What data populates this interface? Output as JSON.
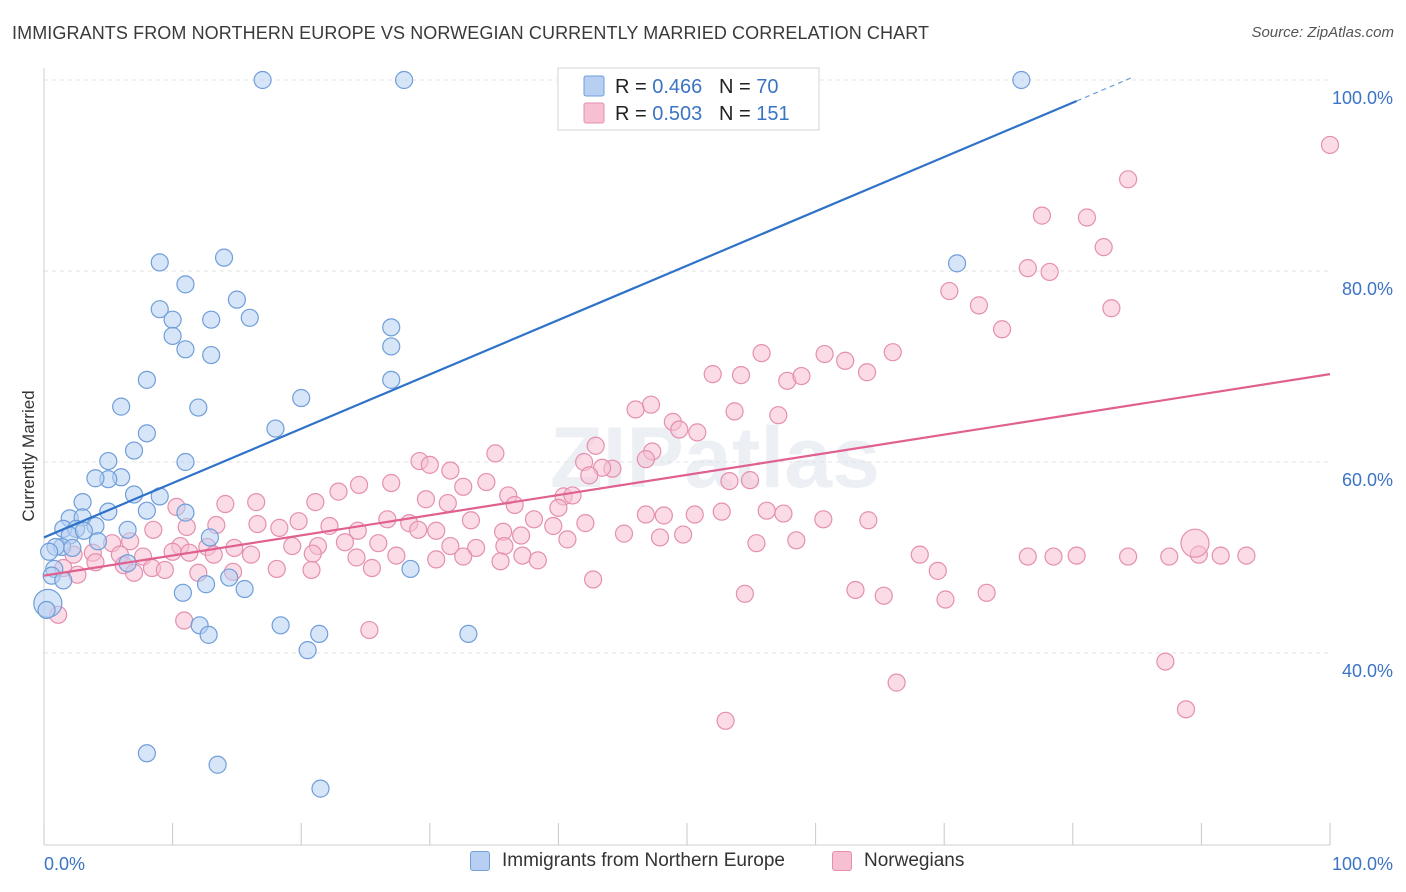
{
  "title": "IMMIGRANTS FROM NORTHERN EUROPE VS NORWEGIAN CURRENTLY MARRIED CORRELATION CHART",
  "source": "Source: ZipAtlas.com",
  "watermark": "ZIPatlas",
  "colors": {
    "blue": "#2f72c9",
    "blue_fill": "#b7d0f2",
    "pink": "#e0608f",
    "pink_fill": "#f7bfd2",
    "tick_label": "#3b74c4"
  },
  "chart_data": {
    "type": "scatter",
    "xlabel": "",
    "ylabel": "Currently Married",
    "xlim": [
      0,
      100
    ],
    "ylim": [
      20,
      102
    ],
    "x_tick_labels": [
      "0.0%",
      "100.0%"
    ],
    "y_ticks": [
      40,
      60,
      80,
      100
    ],
    "y_tick_labels": [
      "40.0%",
      "60.0%",
      "80.0%",
      "100.0%"
    ],
    "grid": true,
    "legend_position": "top-center",
    "stats_legend": [
      {
        "r_label": "R = ",
        "r_value": "0.466",
        "n_label": "N = ",
        "n_value": "70"
      },
      {
        "r_label": "R = ",
        "r_value": "0.503",
        "n_label": "N = ",
        "n_value": "151"
      }
    ],
    "series": [
      {
        "name": "Immigrants from Northern Europe",
        "color": "#2f72c9",
        "trend": {
          "x0": 0,
          "y0": 52.1,
          "x1": 80.3,
          "y1": 97.8,
          "dash_x1": 84.5,
          "dash_y1": 100.2
        },
        "points": [
          [
            17,
            100
          ],
          [
            28,
            100
          ],
          [
            76,
            100
          ],
          [
            9,
            80.9
          ],
          [
            14,
            81.4
          ],
          [
            71,
            80.8
          ],
          [
            11,
            78.6
          ],
          [
            15,
            77
          ],
          [
            9,
            76
          ],
          [
            10,
            74.9
          ],
          [
            13,
            74.9
          ],
          [
            16,
            75.1
          ],
          [
            27,
            74.1
          ],
          [
            10,
            73.2
          ],
          [
            11,
            71.8
          ],
          [
            13,
            71.2
          ],
          [
            27,
            72.1
          ],
          [
            8,
            68.6
          ],
          [
            27,
            68.6
          ],
          [
            6,
            65.8
          ],
          [
            12,
            65.7
          ],
          [
            20,
            66.7
          ],
          [
            8,
            63
          ],
          [
            18,
            63.5
          ],
          [
            7,
            61.2
          ],
          [
            5,
            60.1
          ],
          [
            11,
            60
          ],
          [
            6,
            58.4
          ],
          [
            5,
            58.2
          ],
          [
            4,
            58.3
          ],
          [
            7,
            56.6
          ],
          [
            9,
            56.4
          ],
          [
            3,
            55.8
          ],
          [
            5,
            54.8
          ],
          [
            8,
            54.9
          ],
          [
            11,
            54.7
          ],
          [
            2,
            54.1
          ],
          [
            3,
            54.2
          ],
          [
            4,
            53.3
          ],
          [
            1.5,
            53
          ],
          [
            2.5,
            53
          ],
          [
            6.5,
            52.9
          ],
          [
            2,
            52.3
          ],
          [
            4.2,
            51.7
          ],
          [
            1.4,
            51.1
          ],
          [
            0.9,
            51.1
          ],
          [
            12.9,
            52.1
          ],
          [
            6.5,
            49.4
          ],
          [
            0.8,
            48.8
          ],
          [
            0.6,
            48.1
          ],
          [
            28.5,
            48.8
          ],
          [
            14.4,
            47.9
          ],
          [
            10.8,
            46.3
          ],
          [
            12.6,
            47.2
          ],
          [
            15.6,
            46.7
          ],
          [
            1.5,
            47.6
          ],
          [
            0.3,
            45.2
          ],
          [
            0.2,
            44.5
          ],
          [
            12.1,
            42.9
          ],
          [
            18.4,
            42.9
          ],
          [
            12.8,
            41.9
          ],
          [
            21.4,
            42
          ],
          [
            33,
            42
          ],
          [
            20.5,
            40.3
          ],
          [
            8,
            29.5
          ],
          [
            13.5,
            28.3
          ],
          [
            21.5,
            25.8
          ],
          [
            0.4,
            50.6
          ],
          [
            2.2,
            51
          ],
          [
            3.1,
            52.8
          ]
        ]
      },
      {
        "name": "Norwegians",
        "color": "#e0608f",
        "trend": {
          "x0": 0,
          "y0": 48.1,
          "x1": 100,
          "y1": 69.2
        },
        "points": [
          [
            100,
            93.2
          ],
          [
            84.3,
            89.6
          ],
          [
            77.6,
            85.8
          ],
          [
            81.1,
            85.6
          ],
          [
            82.4,
            82.5
          ],
          [
            76.5,
            80.3
          ],
          [
            78.2,
            79.9
          ],
          [
            70.4,
            77.9
          ],
          [
            72.7,
            76.4
          ],
          [
            83,
            76.1
          ],
          [
            74.5,
            73.9
          ],
          [
            55.8,
            71.4
          ],
          [
            60.7,
            71.3
          ],
          [
            66,
            71.5
          ],
          [
            62.3,
            70.6
          ],
          [
            64,
            69.4
          ],
          [
            54.2,
            69.1
          ],
          [
            57.8,
            68.5
          ],
          [
            58.9,
            69
          ],
          [
            52,
            69.2
          ],
          [
            47.2,
            66
          ],
          [
            46,
            65.5
          ],
          [
            53.7,
            65.3
          ],
          [
            57.1,
            64.9
          ],
          [
            48.9,
            64.2
          ],
          [
            49.4,
            63.4
          ],
          [
            50.8,
            63.1
          ],
          [
            42.9,
            61.7
          ],
          [
            47.3,
            61.1
          ],
          [
            46.8,
            60.3
          ],
          [
            44.2,
            59.3
          ],
          [
            43.4,
            59.4
          ],
          [
            42,
            60
          ],
          [
            35.1,
            60.9
          ],
          [
            29.2,
            60.1
          ],
          [
            30,
            59.7
          ],
          [
            31.6,
            59.1
          ],
          [
            42.4,
            58.6
          ],
          [
            53.3,
            58
          ],
          [
            54.9,
            58.1
          ],
          [
            34.4,
            57.9
          ],
          [
            27,
            57.8
          ],
          [
            24.5,
            57.6
          ],
          [
            32.6,
            57.4
          ],
          [
            22.9,
            56.9
          ],
          [
            36.1,
            56.5
          ],
          [
            40.4,
            56.4
          ],
          [
            41.1,
            56.5
          ],
          [
            29.7,
            56.1
          ],
          [
            31.4,
            55.7
          ],
          [
            21.1,
            55.8
          ],
          [
            16.5,
            55.8
          ],
          [
            14.1,
            55.6
          ],
          [
            10.3,
            55.3
          ],
          [
            36.6,
            55.5
          ],
          [
            40,
            55.2
          ],
          [
            46.8,
            54.5
          ],
          [
            48.2,
            54.4
          ],
          [
            50.6,
            54.5
          ],
          [
            52.7,
            54.8
          ],
          [
            56.2,
            54.9
          ],
          [
            57.5,
            54.6
          ],
          [
            60.6,
            54
          ],
          [
            64.1,
            53.9
          ],
          [
            42.1,
            53.6
          ],
          [
            19.8,
            53.8
          ],
          [
            26.7,
            54
          ],
          [
            28.4,
            53.6
          ],
          [
            33.2,
            53.9
          ],
          [
            38.1,
            54
          ],
          [
            39.6,
            53.3
          ],
          [
            16.6,
            53.5
          ],
          [
            13.4,
            53.4
          ],
          [
            11.1,
            53.2
          ],
          [
            8.5,
            52.9
          ],
          [
            18.3,
            53.1
          ],
          [
            22.2,
            53.3
          ],
          [
            24.4,
            52.8
          ],
          [
            29.1,
            52.9
          ],
          [
            30.5,
            52.8
          ],
          [
            35.7,
            52.7
          ],
          [
            37.1,
            52.3
          ],
          [
            40.7,
            51.9
          ],
          [
            45.1,
            52.5
          ],
          [
            47.9,
            52.1
          ],
          [
            49.7,
            52.4
          ],
          [
            55.4,
            51.5
          ],
          [
            58.5,
            51.8
          ],
          [
            5.3,
            51.5
          ],
          [
            6.7,
            51.7
          ],
          [
            10.6,
            51.2
          ],
          [
            12.7,
            51.1
          ],
          [
            14.8,
            51
          ],
          [
            19.3,
            51.2
          ],
          [
            21.3,
            51.2
          ],
          [
            23.4,
            51.6
          ],
          [
            26,
            51.5
          ],
          [
            31.6,
            51.2
          ],
          [
            33.6,
            51
          ],
          [
            35.8,
            51.2
          ],
          [
            2.3,
            50.3
          ],
          [
            3.8,
            50.5
          ],
          [
            5.9,
            50.3
          ],
          [
            7.7,
            50.1
          ],
          [
            10,
            50.6
          ],
          [
            11.3,
            50.5
          ],
          [
            13.2,
            50.3
          ],
          [
            16.1,
            50.3
          ],
          [
            20.9,
            50.4
          ],
          [
            24.3,
            50
          ],
          [
            27.4,
            50.2
          ],
          [
            30.5,
            49.8
          ],
          [
            32.6,
            50.1
          ],
          [
            35.5,
            49.6
          ],
          [
            37.2,
            50.2
          ],
          [
            38.4,
            49.7
          ],
          [
            68.1,
            50.3
          ],
          [
            76.5,
            50.1
          ],
          [
            78.5,
            50.1
          ],
          [
            80.3,
            50.2
          ],
          [
            84.3,
            50.1
          ],
          [
            87.5,
            50.1
          ],
          [
            89.8,
            50.3
          ],
          [
            91.5,
            50.2
          ],
          [
            93.5,
            50.2
          ],
          [
            4,
            49.5
          ],
          [
            6.2,
            49.2
          ],
          [
            8.4,
            48.9
          ],
          [
            9.4,
            48.7
          ],
          [
            14.7,
            48.5
          ],
          [
            18.1,
            48.8
          ],
          [
            20.8,
            48.7
          ],
          [
            25.5,
            48.9
          ],
          [
            1.5,
            48.9
          ],
          [
            2.6,
            48.2
          ],
          [
            7,
            48.4
          ],
          [
            12,
            48.4
          ],
          [
            42.7,
            47.7
          ],
          [
            54.5,
            46.2
          ],
          [
            63.1,
            46.6
          ],
          [
            65.3,
            46
          ],
          [
            69.5,
            48.6
          ],
          [
            70.1,
            45.6
          ],
          [
            73.3,
            46.3
          ],
          [
            89.5,
            51.5
          ],
          [
            1.1,
            44
          ],
          [
            10.9,
            43.4
          ],
          [
            25.3,
            42.4
          ],
          [
            87.2,
            39.1
          ],
          [
            66.3,
            36.9
          ],
          [
            53,
            32.9
          ],
          [
            88.8,
            34.1
          ]
        ]
      }
    ]
  },
  "bottom_legend": [
    {
      "label": "Immigrants from Northern Europe"
    },
    {
      "label": "Norwegians"
    }
  ]
}
